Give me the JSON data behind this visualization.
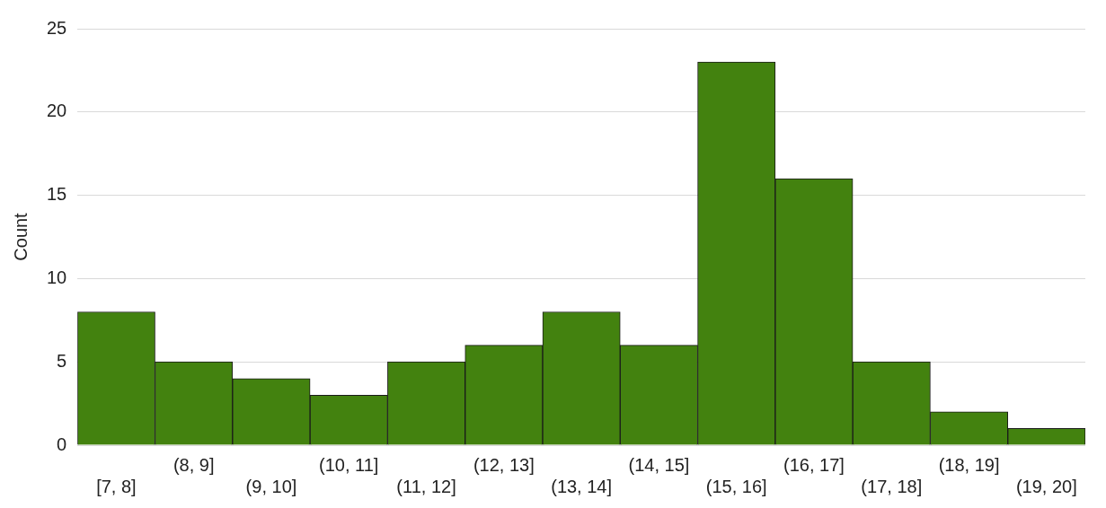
{
  "chart_data": {
    "type": "bar",
    "ylabel": "Count",
    "categories": [
      "[7, 8]",
      "(8, 9]",
      "(9, 10]",
      "(10, 11]",
      "(11, 12]",
      "(12, 13]",
      "(13, 14]",
      "(14, 15]",
      "(15, 16]",
      "(16, 17]",
      "(17, 18]",
      "(18, 19]",
      "(19, 20]"
    ],
    "values": [
      8,
      5,
      4,
      3,
      5,
      6,
      8,
      6,
      23,
      16,
      5,
      2,
      1
    ],
    "color": "#43820f",
    "ylim": [
      0,
      25
    ],
    "yticks": [
      0,
      5,
      10,
      15,
      20,
      25
    ],
    "grid": "y",
    "legend": false
  }
}
